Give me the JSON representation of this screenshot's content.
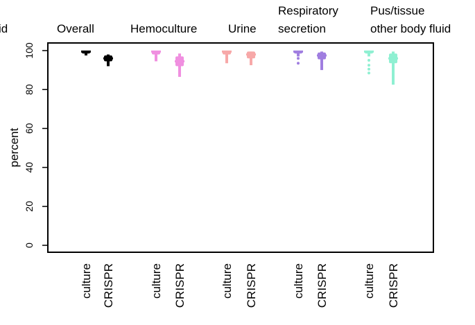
{
  "chart_data": {
    "type": "scatter",
    "ylabel": "percent",
    "ylim": [
      0,
      100
    ],
    "yticks": [
      "0",
      "20",
      "40",
      "60",
      "80",
      "100"
    ],
    "cropped_left_text": "id",
    "panel_titles": [
      [
        "Overall"
      ],
      [
        "Hemoculture"
      ],
      [
        "Urine"
      ],
      [
        "Respiratory",
        "secretion"
      ],
      [
        "Pus/tissue",
        "other body fluid"
      ]
    ],
    "groups": [
      {
        "color": "#000000",
        "methods": [
          {
            "label": "culture",
            "median": 99.5,
            "q1": 98.5,
            "q3": 100,
            "whisker_low": 97.5,
            "whisker_high": 100,
            "dots": []
          },
          {
            "label": "CRISPR",
            "median": 96,
            "q1": 94.5,
            "q3": 97.5,
            "whisker_low": 92,
            "whisker_high": 98,
            "dots": []
          }
        ]
      },
      {
        "color": "#f08fe0",
        "methods": [
          {
            "label": "culture",
            "median": 99.5,
            "q1": 98,
            "q3": 100,
            "whisker_low": 94.5,
            "whisker_high": 100,
            "dots": []
          },
          {
            "label": "CRISPR",
            "median": 94.5,
            "q1": 92,
            "q3": 97,
            "whisker_low": 86.5,
            "whisker_high": 98.5,
            "dots": []
          }
        ]
      },
      {
        "color": "#f7a8a8",
        "methods": [
          {
            "label": "culture",
            "median": 99.5,
            "q1": 98,
            "q3": 100,
            "whisker_low": 93.5,
            "whisker_high": 100,
            "dots": []
          },
          {
            "label": "CRISPR",
            "median": 98,
            "q1": 96,
            "q3": 99.5,
            "whisker_low": 92.5,
            "whisker_high": 99.5,
            "dots": []
          }
        ]
      },
      {
        "color": "#a07ee0",
        "methods": [
          {
            "label": "culture",
            "median": 99.5,
            "q1": 98.5,
            "q3": 100,
            "whisker_low": 97,
            "whisker_high": 100,
            "dots": [
              96,
              93.5
            ]
          },
          {
            "label": "CRISPR",
            "median": 97.5,
            "q1": 95.5,
            "q3": 99,
            "whisker_low": 90,
            "whisker_high": 99.5,
            "dots": []
          }
        ]
      },
      {
        "color": "#8ff0d2",
        "methods": [
          {
            "label": "culture",
            "median": 99.5,
            "q1": 98.5,
            "q3": 100,
            "whisker_low": 97,
            "whisker_high": 100,
            "dots": [
              95,
              92.5,
              90.5,
              88.5
            ]
          },
          {
            "label": "CRISPR",
            "median": 96,
            "q1": 93.5,
            "q3": 98.5,
            "whisker_low": 82.5,
            "whisker_high": 99.5,
            "dots": []
          }
        ]
      }
    ]
  }
}
